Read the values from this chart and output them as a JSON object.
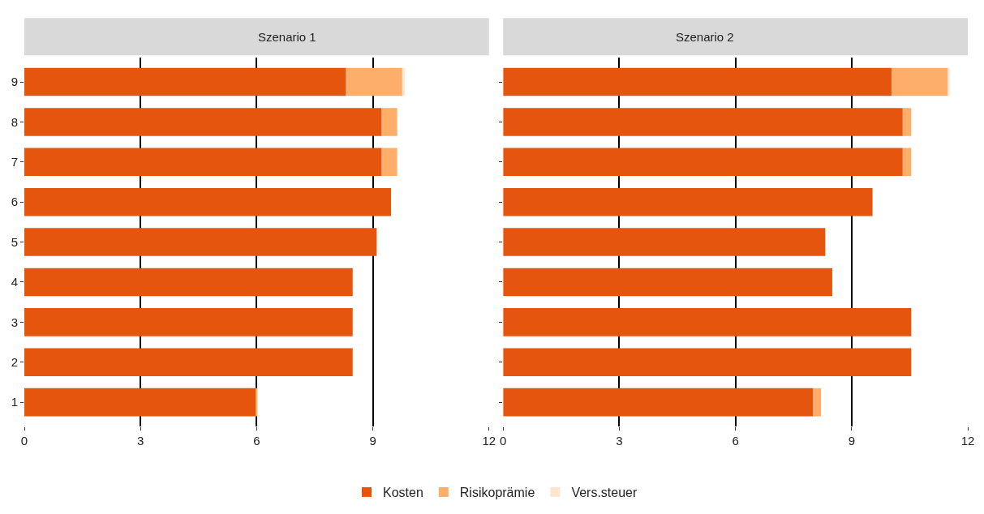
{
  "chart_data": [
    {
      "type": "bar",
      "title": "Szenario 1",
      "orientation": "horizontal",
      "stacked": true,
      "categories": [
        "9",
        "8",
        "7",
        "6",
        "5",
        "4",
        "3",
        "2",
        "1"
      ],
      "series": [
        {
          "name": "Kosten",
          "color": "#e6550d",
          "values": [
            8.31,
            9.23,
            9.23,
            9.47,
            9.1,
            8.48,
            8.48,
            8.48,
            5.98
          ]
        },
        {
          "name": "Risikoprämie",
          "color": "#fdae6b",
          "values": [
            1.45,
            0.4,
            0.4,
            0,
            0,
            0,
            0,
            0,
            0.04
          ]
        },
        {
          "name": "Vers.steuer",
          "color": "#fee6ce",
          "values": [
            0.07,
            0,
            0,
            0,
            0,
            0,
            0,
            0,
            0
          ]
        }
      ],
      "xlim": [
        0,
        12
      ],
      "xticks": [
        0,
        3,
        6,
        9,
        12
      ],
      "grid": "x",
      "legend": "bottom"
    },
    {
      "type": "bar",
      "title": "Szenario 2",
      "orientation": "horizontal",
      "stacked": true,
      "categories": [
        "9",
        "8",
        "7",
        "6",
        "5",
        "4",
        "3",
        "2",
        "1"
      ],
      "series": [
        {
          "color": "#e6550d",
          "values": [
            10.03,
            10.32,
            10.32,
            9.54,
            8.32,
            8.5,
            10.54,
            10.54,
            8.01
          ]
        },
        {
          "color": "#fdae6b",
          "values": [
            1.46,
            0.22,
            0.22,
            0,
            0,
            0,
            0,
            0,
            0.2
          ]
        },
        {
          "color": "#fee6ce",
          "values": [
            0.04,
            0,
            0,
            0,
            0,
            0,
            0,
            0,
            0
          ]
        }
      ],
      "xlim": [
        0,
        12
      ],
      "xticks": [
        0,
        3,
        6,
        9,
        12
      ],
      "grid": "x",
      "tick_labels": "x"
    }
  ]
}
